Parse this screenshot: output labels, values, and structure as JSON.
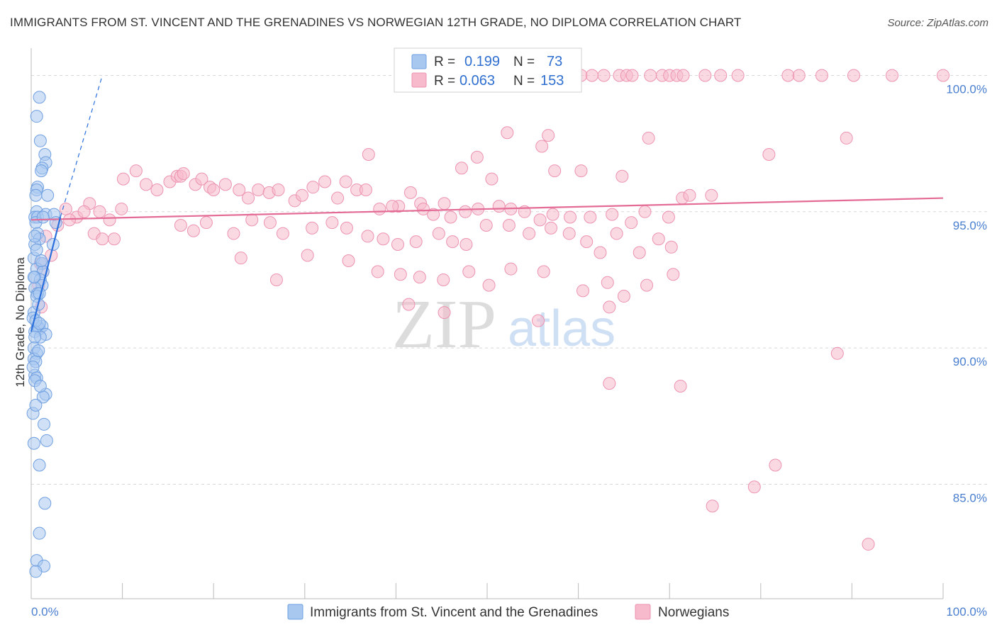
{
  "header": {
    "title": "IMMIGRANTS FROM ST. VINCENT AND THE GRENADINES VS NORWEGIAN 12TH GRADE, NO DIPLOMA CORRELATION CHART",
    "source": "Source: ZipAtlas.com"
  },
  "watermark": {
    "zip": "ZIP",
    "atlas": "atlas"
  },
  "legend": {
    "series1": {
      "r_label": "R = ",
      "r_value": "0.199",
      "n_label": "N = ",
      "n_value": "73"
    },
    "series2": {
      "r_label": "R = ",
      "r_value": "0.063",
      "n_label": "N = ",
      "n_value": "153"
    }
  },
  "chart_data": {
    "type": "scatter",
    "xlabel": "",
    "ylabel": "12th Grade, No Diploma",
    "xlim": [
      0,
      100
    ],
    "ylim": [
      80.8,
      101.0
    ],
    "x_tick_labels": [
      "0.0%",
      "100.0%"
    ],
    "y_ticks": [
      100,
      95,
      90,
      85
    ],
    "y_tick_labels": [
      "100.0%",
      "95.0%",
      "90.0%",
      "85.0%"
    ],
    "grid": true,
    "colors": {
      "series1_fill": "#a9c8f0",
      "series1_stroke": "#6f9fe0",
      "series1_line": "#2a6fdc",
      "series2_fill": "#f7b9cc",
      "series2_stroke": "#ec93b0",
      "series2_line": "#e36b95",
      "grid": "#d8d8d8",
      "tick_label": "#4a7fd0"
    },
    "series": [
      {
        "name": "Immigrants from St. Vincent and the Grenadines",
        "trend": {
          "x0": 0.0,
          "y0": 90.6,
          "x1": 3.2,
          "y1": 94.8,
          "dash_x1": 7.8,
          "dash_y1": 100.0
        },
        "points": [
          [
            0.9,
            99.2
          ],
          [
            0.6,
            98.5
          ],
          [
            1.0,
            97.6
          ],
          [
            1.5,
            97.1
          ],
          [
            1.6,
            96.8
          ],
          [
            1.2,
            96.6
          ],
          [
            1.1,
            96.5
          ],
          [
            0.7,
            95.9
          ],
          [
            0.6,
            95.8
          ],
          [
            1.8,
            95.6
          ],
          [
            0.5,
            95.6
          ],
          [
            0.6,
            95.0
          ],
          [
            0.4,
            94.8
          ],
          [
            0.7,
            94.8
          ],
          [
            1.6,
            94.9
          ],
          [
            2.5,
            94.9
          ],
          [
            2.7,
            94.6
          ],
          [
            0.5,
            94.6
          ],
          [
            0.7,
            94.2
          ],
          [
            0.9,
            94.0
          ],
          [
            0.4,
            93.8
          ],
          [
            2.4,
            93.8
          ],
          [
            0.3,
            93.3
          ],
          [
            1.2,
            93.1
          ],
          [
            0.6,
            92.9
          ],
          [
            1.3,
            92.8
          ],
          [
            0.4,
            92.6
          ],
          [
            1.0,
            92.5
          ],
          [
            1.2,
            92.3
          ],
          [
            0.4,
            92.2
          ],
          [
            0.7,
            92.0
          ],
          [
            0.6,
            91.9
          ],
          [
            0.3,
            91.3
          ],
          [
            0.2,
            91.1
          ],
          [
            0.7,
            90.8
          ],
          [
            0.9,
            90.7
          ],
          [
            1.2,
            90.8
          ],
          [
            0.4,
            90.6
          ],
          [
            1.6,
            90.5
          ],
          [
            1.0,
            90.4
          ],
          [
            0.4,
            90.4
          ],
          [
            0.3,
            90.0
          ],
          [
            0.6,
            89.8
          ],
          [
            0.3,
            89.6
          ],
          [
            0.5,
            89.5
          ],
          [
            0.4,
            89.0
          ],
          [
            0.6,
            88.9
          ],
          [
            0.4,
            88.8
          ],
          [
            1.6,
            88.3
          ],
          [
            1.3,
            88.2
          ],
          [
            0.2,
            87.6
          ],
          [
            1.4,
            87.2
          ],
          [
            1.7,
            86.6
          ],
          [
            0.3,
            86.5
          ],
          [
            0.9,
            85.7
          ],
          [
            1.5,
            84.3
          ],
          [
            0.9,
            83.2
          ],
          [
            0.6,
            82.2
          ],
          [
            1.4,
            82.0
          ],
          [
            0.5,
            81.8
          ],
          [
            0.3,
            92.6
          ],
          [
            0.9,
            92.0
          ],
          [
            0.5,
            91.0
          ],
          [
            0.8,
            89.9
          ],
          [
            1.1,
            93.2
          ],
          [
            0.4,
            94.1
          ],
          [
            0.8,
            91.6
          ],
          [
            1.0,
            88.6
          ],
          [
            0.2,
            89.3
          ],
          [
            1.3,
            94.8
          ],
          [
            0.6,
            93.6
          ],
          [
            0.9,
            90.9
          ],
          [
            0.5,
            87.9
          ]
        ]
      },
      {
        "name": "Norwegians",
        "trend": {
          "x0": 0.0,
          "y0": 94.7,
          "x1": 100.0,
          "y1": 95.5
        },
        "points": [
          [
            60.3,
            100.0
          ],
          [
            62.8,
            100.0
          ],
          [
            64.5,
            100.0
          ],
          [
            65.3,
            100.0
          ],
          [
            65.9,
            100.0
          ],
          [
            67.9,
            100.0
          ],
          [
            69.2,
            100.0
          ],
          [
            70.0,
            100.0
          ],
          [
            70.8,
            100.0
          ],
          [
            71.5,
            100.0
          ],
          [
            75.6,
            100.0
          ],
          [
            77.5,
            100.0
          ],
          [
            83.0,
            100.0
          ],
          [
            84.2,
            100.0
          ],
          [
            86.7,
            100.0
          ],
          [
            94.4,
            100.0
          ],
          [
            100.0,
            100.0
          ],
          [
            73.9,
            100.0
          ],
          [
            90.2,
            100.0
          ],
          [
            61.5,
            100.0
          ],
          [
            56.7,
            97.8
          ],
          [
            67.7,
            97.7
          ],
          [
            80.9,
            97.1
          ],
          [
            89.4,
            97.7
          ],
          [
            52.2,
            97.9
          ],
          [
            56.0,
            97.4
          ],
          [
            48.9,
            97.0
          ],
          [
            37.0,
            97.1
          ],
          [
            50.5,
            96.2
          ],
          [
            47.2,
            96.6
          ],
          [
            57.4,
            96.5
          ],
          [
            60.3,
            96.5
          ],
          [
            64.8,
            96.3
          ],
          [
            71.4,
            95.5
          ],
          [
            72.2,
            95.6
          ],
          [
            74.6,
            95.6
          ],
          [
            45.3,
            95.3
          ],
          [
            42.7,
            95.3
          ],
          [
            40.3,
            95.2
          ],
          [
            10.1,
            96.2
          ],
          [
            11.5,
            96.5
          ],
          [
            12.6,
            96.0
          ],
          [
            13.8,
            95.8
          ],
          [
            15.2,
            96.1
          ],
          [
            16.0,
            96.3
          ],
          [
            16.4,
            96.3
          ],
          [
            16.7,
            96.4
          ],
          [
            18.0,
            96.0
          ],
          [
            18.7,
            96.2
          ],
          [
            19.6,
            95.9
          ],
          [
            20.0,
            95.8
          ],
          [
            21.3,
            96.0
          ],
          [
            22.8,
            95.8
          ],
          [
            23.8,
            95.5
          ],
          [
            24.9,
            95.8
          ],
          [
            26.1,
            95.7
          ],
          [
            27.1,
            95.8
          ],
          [
            28.9,
            95.4
          ],
          [
            29.7,
            95.6
          ],
          [
            30.9,
            95.9
          ],
          [
            32.2,
            96.1
          ],
          [
            33.6,
            95.5
          ],
          [
            34.5,
            96.1
          ],
          [
            35.7,
            95.8
          ],
          [
            36.7,
            95.8
          ],
          [
            38.2,
            95.1
          ],
          [
            39.6,
            95.2
          ],
          [
            41.6,
            95.7
          ],
          [
            43.0,
            95.1
          ],
          [
            44.1,
            94.9
          ],
          [
            46.0,
            94.8
          ],
          [
            47.6,
            95.0
          ],
          [
            49.0,
            95.1
          ],
          [
            51.3,
            95.2
          ],
          [
            52.6,
            95.1
          ],
          [
            54.1,
            95.0
          ],
          [
            55.8,
            94.7
          ],
          [
            57.2,
            94.9
          ],
          [
            59.1,
            94.8
          ],
          [
            61.3,
            94.8
          ],
          [
            63.7,
            94.9
          ],
          [
            65.8,
            94.6
          ],
          [
            67.3,
            95.0
          ],
          [
            69.9,
            94.8
          ],
          [
            3.8,
            95.1
          ],
          [
            5.0,
            94.8
          ],
          [
            6.4,
            95.3
          ],
          [
            7.5,
            95.0
          ],
          [
            8.6,
            94.7
          ],
          [
            9.9,
            95.1
          ],
          [
            4.2,
            94.7
          ],
          [
            5.8,
            95.0
          ],
          [
            2.9,
            94.5
          ],
          [
            1.6,
            94.1
          ],
          [
            2.2,
            93.4
          ],
          [
            1.0,
            93.1
          ],
          [
            1.3,
            92.8
          ],
          [
            0.8,
            92.3
          ],
          [
            1.1,
            91.5
          ],
          [
            6.9,
            94.2
          ],
          [
            7.8,
            94.0
          ],
          [
            9.1,
            94.0
          ],
          [
            16.4,
            94.5
          ],
          [
            17.8,
            94.3
          ],
          [
            19.2,
            94.6
          ],
          [
            22.2,
            94.2
          ],
          [
            24.2,
            94.7
          ],
          [
            26.2,
            94.6
          ],
          [
            27.6,
            94.2
          ],
          [
            30.8,
            94.4
          ],
          [
            33.0,
            94.6
          ],
          [
            34.6,
            94.4
          ],
          [
            36.9,
            94.1
          ],
          [
            38.6,
            94.0
          ],
          [
            40.2,
            93.8
          ],
          [
            42.2,
            93.9
          ],
          [
            44.7,
            94.2
          ],
          [
            46.2,
            93.9
          ],
          [
            47.7,
            93.8
          ],
          [
            49.9,
            94.5
          ],
          [
            52.4,
            94.5
          ],
          [
            54.6,
            94.2
          ],
          [
            57.0,
            94.4
          ],
          [
            59.0,
            94.2
          ],
          [
            60.9,
            93.9
          ],
          [
            62.4,
            93.5
          ],
          [
            64.2,
            94.2
          ],
          [
            66.7,
            93.5
          ],
          [
            68.8,
            94.0
          ],
          [
            70.2,
            93.7
          ],
          [
            23.0,
            93.3
          ],
          [
            30.3,
            93.4
          ],
          [
            34.8,
            93.2
          ],
          [
            38.0,
            92.8
          ],
          [
            40.5,
            92.7
          ],
          [
            42.6,
            92.6
          ],
          [
            45.2,
            92.5
          ],
          [
            48.0,
            92.8
          ],
          [
            50.2,
            92.3
          ],
          [
            52.6,
            92.9
          ],
          [
            56.2,
            92.8
          ],
          [
            60.5,
            92.1
          ],
          [
            63.2,
            92.4
          ],
          [
            65.0,
            91.9
          ],
          [
            67.5,
            92.3
          ],
          [
            70.4,
            92.7
          ],
          [
            41.4,
            91.6
          ],
          [
            45.3,
            91.3
          ],
          [
            55.6,
            91.0
          ],
          [
            63.4,
            91.5
          ],
          [
            88.4,
            89.8
          ],
          [
            63.4,
            88.7
          ],
          [
            71.2,
            88.6
          ],
          [
            81.6,
            85.7
          ],
          [
            79.3,
            84.9
          ],
          [
            74.7,
            84.2
          ],
          [
            91.8,
            82.8
          ],
          [
            26.9,
            92.5
          ]
        ]
      }
    ]
  },
  "bottom_legend": {
    "series1_label": "Immigrants from St. Vincent and the Grenadines",
    "series2_label": "Norwegians"
  }
}
